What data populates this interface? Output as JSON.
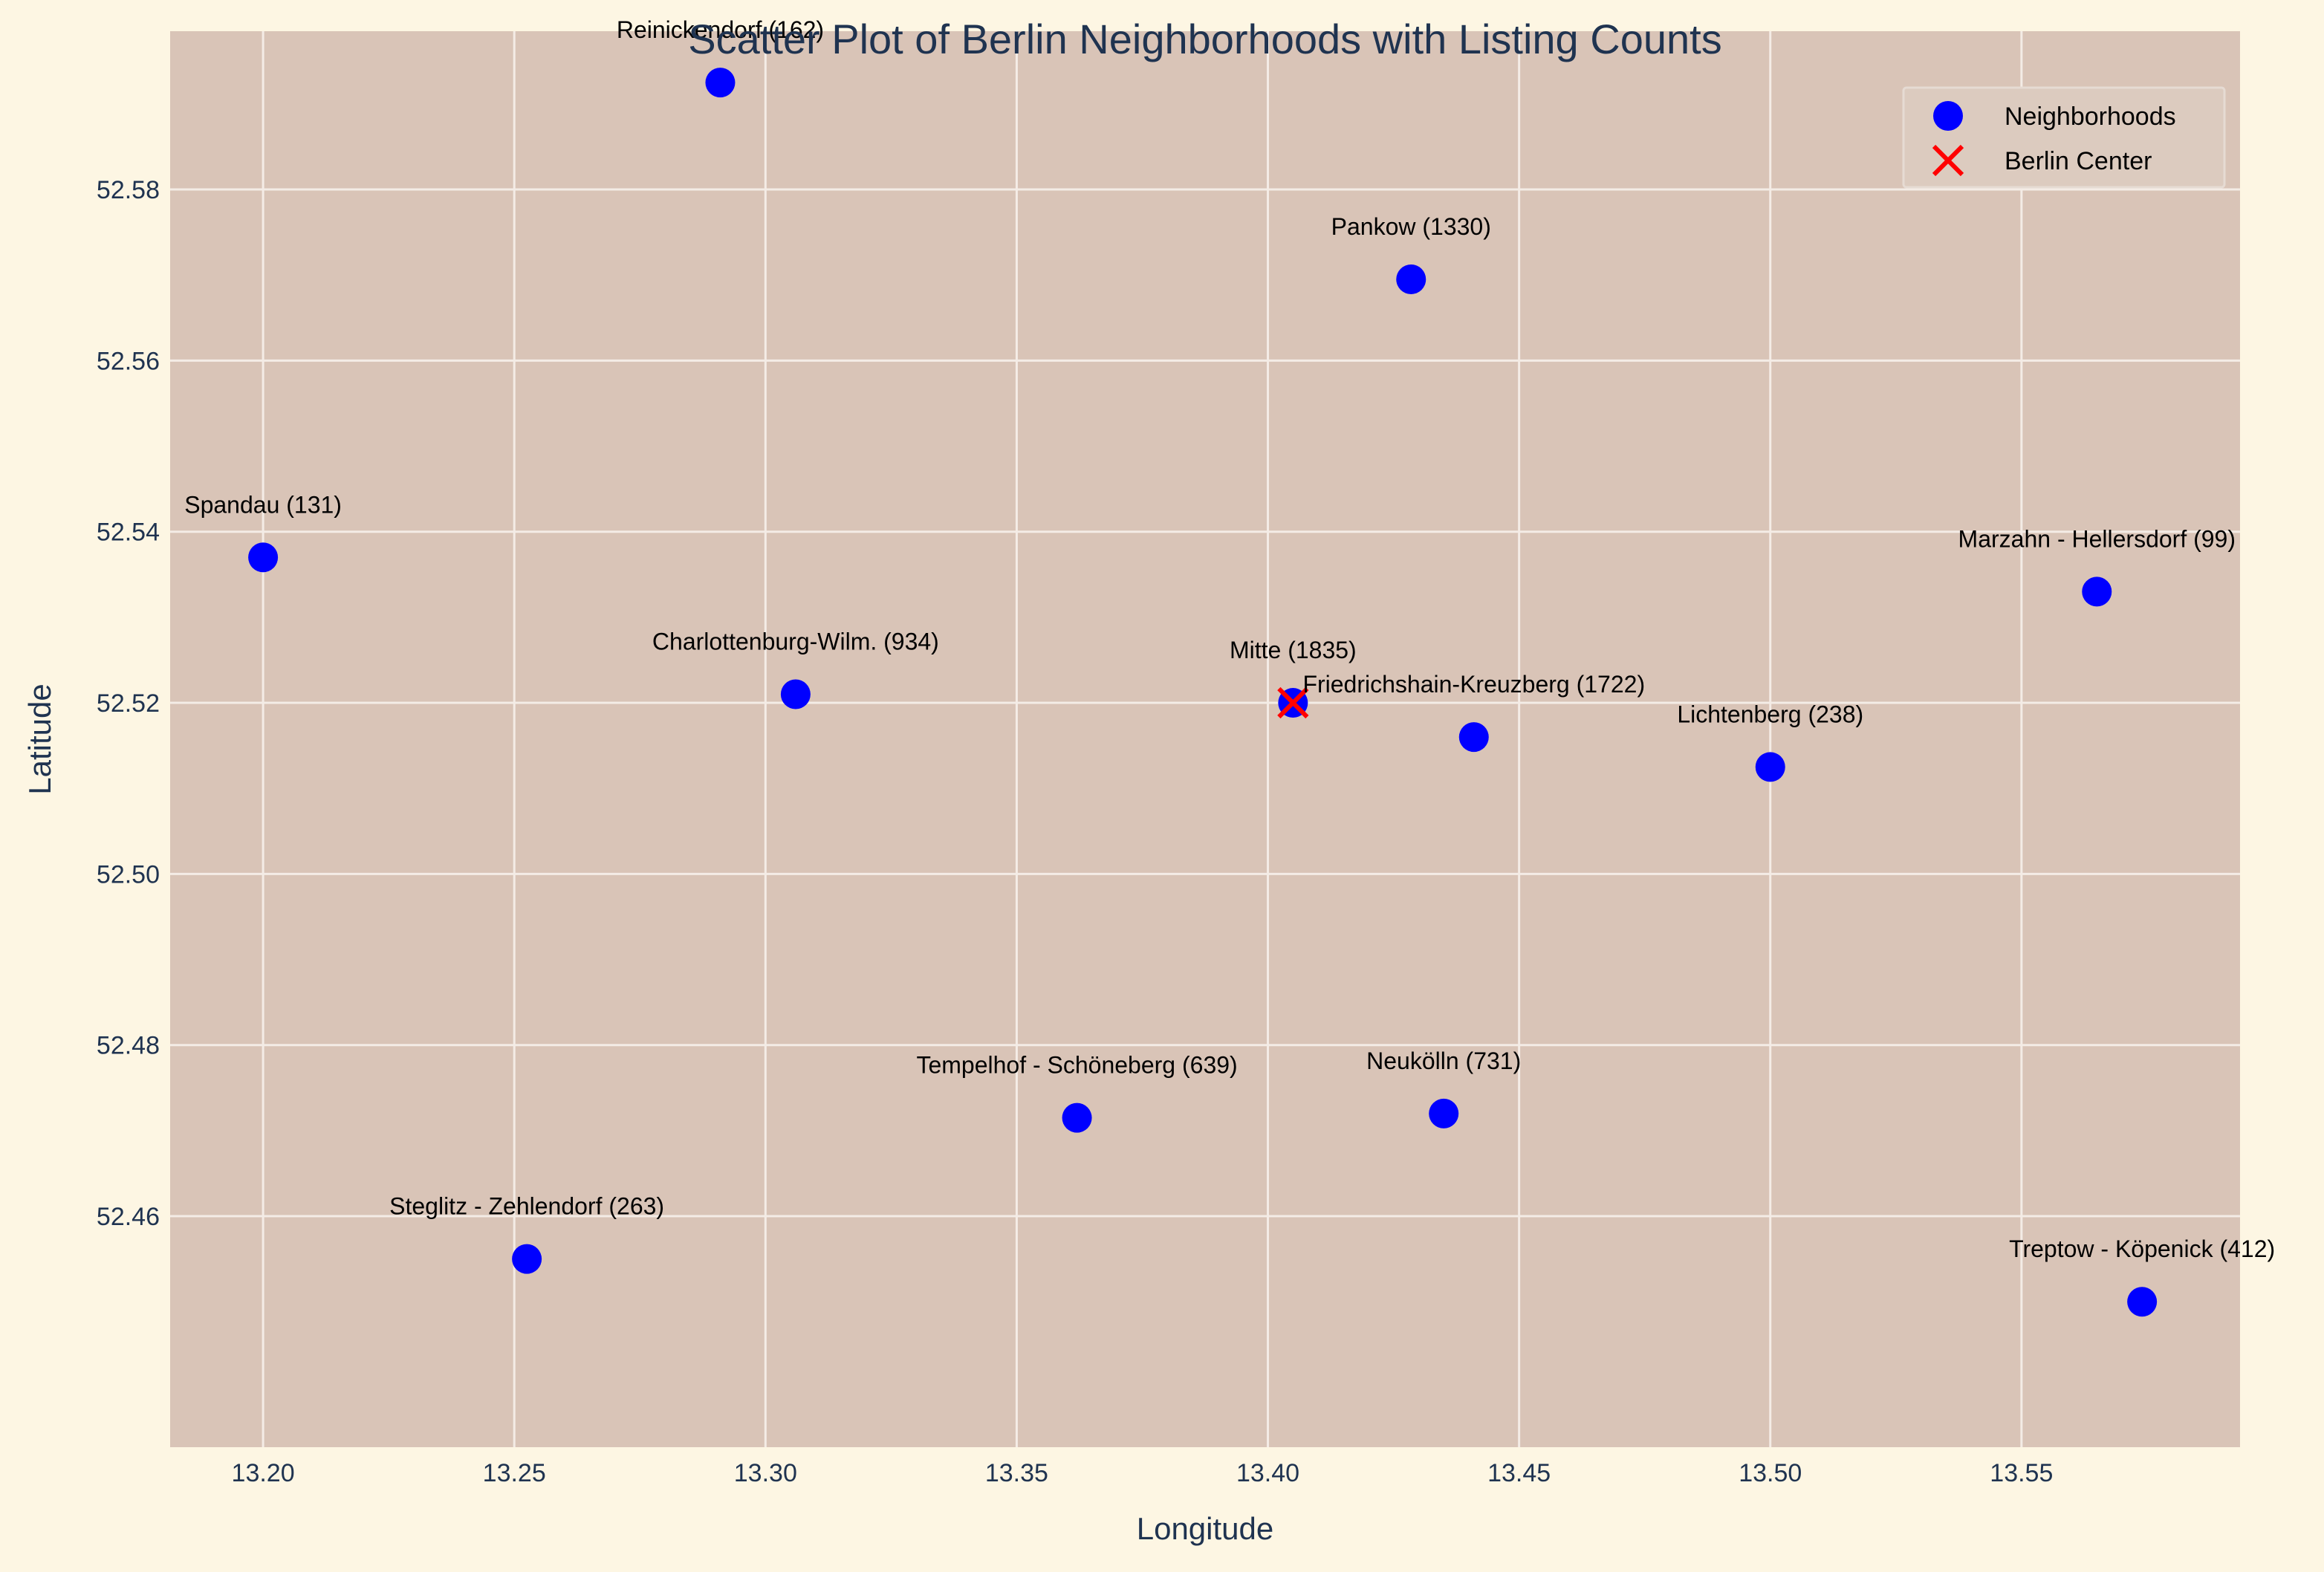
{
  "chart_data": {
    "type": "scatter",
    "title": "Scatter Plot of Berlin Neighborhoods with Listing Counts",
    "xlabel": "Longitude",
    "ylabel": "Latitude",
    "xlim": [
      13.1815,
      13.5935
    ],
    "ylim": [
      52.433,
      52.5985
    ],
    "xticks": [
      13.2,
      13.25,
      13.3,
      13.35,
      13.4,
      13.45,
      13.5,
      13.55
    ],
    "xtick_labels": [
      "13.20",
      "13.25",
      "13.30",
      "13.35",
      "13.40",
      "13.45",
      "13.50",
      "13.55"
    ],
    "yticks": [
      52.46,
      52.48,
      52.5,
      52.52,
      52.54,
      52.56,
      52.58
    ],
    "ytick_labels": [
      "52.46",
      "52.48",
      "52.50",
      "52.52",
      "52.54",
      "52.56",
      "52.58"
    ],
    "grid": true,
    "legend_position": "top-right",
    "colors": {
      "figure_background": "#fdf6e3",
      "plot_background": "#d9c4b7",
      "grid": "#f4ece6",
      "neighborhood_marker": "#0000ff",
      "center_marker": "#ff0000",
      "text": "#1f3350"
    },
    "series": [
      {
        "name": "Neighborhoods",
        "marker": "circle",
        "points": [
          {
            "label": "Reinickendorf (162)",
            "x": 13.291,
            "y": 52.5925
          },
          {
            "label": "Pankow (1330)",
            "x": 13.4285,
            "y": 52.5695
          },
          {
            "label": "Spandau (131)",
            "x": 13.2,
            "y": 52.537
          },
          {
            "label": "Marzahn - Hellersdorf (99)",
            "x": 13.565,
            "y": 52.533
          },
          {
            "label": "Charlottenburg-Wilm. (934)",
            "x": 13.306,
            "y": 52.521
          },
          {
            "label": "Mitte (1835)",
            "x": 13.405,
            "y": 52.52
          },
          {
            "label": "Friedrichshain-Kreuzberg (1722)",
            "x": 13.441,
            "y": 52.516
          },
          {
            "label": "Lichtenberg (238)",
            "x": 13.5,
            "y": 52.5125
          },
          {
            "label": "Tempelhof - Schöneberg (639)",
            "x": 13.362,
            "y": 52.4715
          },
          {
            "label": "Neukölln (731)",
            "x": 13.435,
            "y": 52.472
          },
          {
            "label": "Steglitz - Zehlendorf (263)",
            "x": 13.2525,
            "y": 52.455
          },
          {
            "label": "Treptow - Köpenick (412)",
            "x": 13.574,
            "y": 52.45
          }
        ]
      },
      {
        "name": "Berlin Center",
        "marker": "x",
        "points": [
          {
            "x": 13.405,
            "y": 52.52
          }
        ]
      }
    ]
  }
}
